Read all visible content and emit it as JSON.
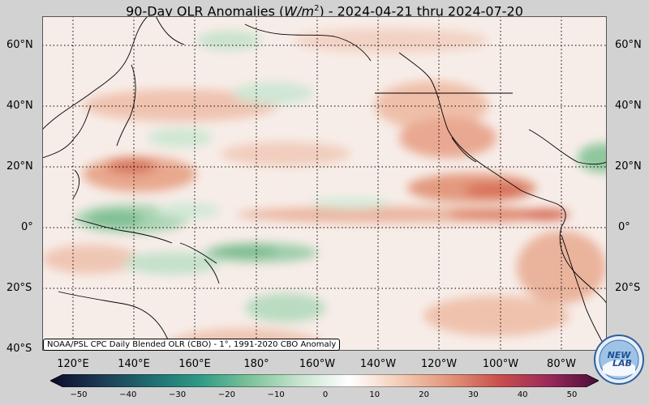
{
  "title": {
    "prefix": "90-Day OLR Anomalies (",
    "unit": "W/m",
    "unit_exp": "2",
    "suffix": ") - 2024-04-21 thru 2024-07-20"
  },
  "lat_labels": [
    "60°N",
    "40°N",
    "20°N",
    "0°",
    "20°S",
    "40°S"
  ],
  "lon_labels": [
    "120°E",
    "140°E",
    "160°E",
    "180°",
    "160°W",
    "140°W",
    "120°W",
    "100°W",
    "80°W"
  ],
  "credit": "NOAA/PSL CPC Daily Blended OLR (CBO) - 1°, 1991-2020 CBO Anomaly",
  "colorbar": {
    "ticks": [
      "−50",
      "−40",
      "−30",
      "−20",
      "−10",
      "0",
      "10",
      "20",
      "30",
      "40",
      "50"
    ],
    "colors": [
      "#0b0b2a",
      "#1d3a55",
      "#1f6c70",
      "#2f9a86",
      "#7cc39a",
      "#c8e4cf",
      "#ffffff",
      "#f3cdb8",
      "#e3957a",
      "#c9504c",
      "#9a2a5a",
      "#4a0d3a"
    ]
  },
  "logo": {
    "text_top": "NEW",
    "text_bottom": "LAB"
  },
  "icons": {
    "logo": "noaa-psl-logo-icon"
  }
}
